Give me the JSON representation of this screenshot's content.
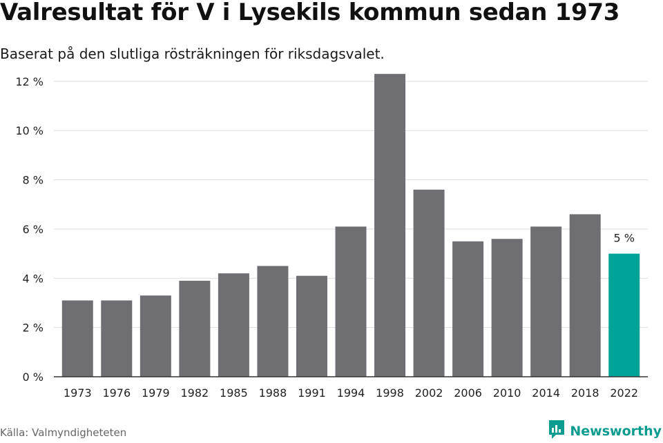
{
  "header": {
    "title": "Valresultat för V i Lysekils kommun sedan 1973",
    "subtitle": "Baserat på den slutliga rösträkningen för riksdagsvalet."
  },
  "footer": {
    "source": "Källa: Valmyndigheteten",
    "brand": "Newsworthy",
    "brand_icon": "newsworthy-logo-icon"
  },
  "colors": {
    "bar": "#6f6e73",
    "highlight": "#00a398",
    "grid": "#dddddd",
    "axis": "#333333",
    "text": "#222222",
    "brand": "#0a9d8f"
  },
  "chart_data": {
    "type": "bar",
    "title": "Valresultat för V i Lysekils kommun sedan 1973",
    "subtitle": "Baserat på den slutliga rösträkningen för riksdagsvalet.",
    "xlabel": "",
    "ylabel": "",
    "categories": [
      "1973",
      "1976",
      "1979",
      "1982",
      "1985",
      "1988",
      "1991",
      "1994",
      "1998",
      "2002",
      "2006",
      "2010",
      "2014",
      "2018",
      "2022"
    ],
    "values": [
      3.1,
      3.1,
      3.3,
      3.9,
      4.2,
      4.5,
      4.1,
      6.1,
      12.3,
      7.6,
      5.5,
      5.6,
      6.1,
      6.6,
      5.0
    ],
    "ylim": [
      0,
      12.5
    ],
    "yticks": [
      0,
      2,
      4,
      6,
      8,
      10,
      12
    ],
    "tick_labels": [
      "0 %",
      "2 %",
      "4 %",
      "6 %",
      "8 %",
      "10 %",
      "12 %"
    ],
    "grid": true,
    "highlight_index": 14,
    "highlight_label": "5 %"
  }
}
